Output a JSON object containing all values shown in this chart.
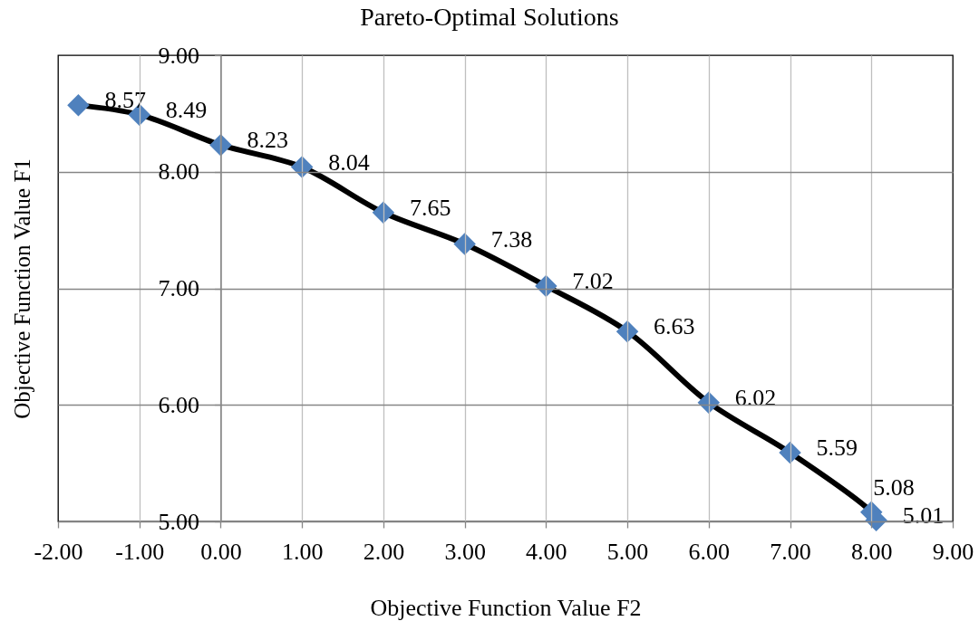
{
  "chart_data": {
    "type": "line",
    "title": "Pareto-Optimal Solutions",
    "xlabel": "Objective Function Value F2",
    "ylabel": "Objective Function Value F1",
    "x": [
      -1.75,
      -1,
      0,
      1,
      2,
      3,
      4,
      5,
      6,
      7,
      8,
      8.06
    ],
    "series": [
      {
        "color": "#000000",
        "colors": [
          "#4f81bd",
          "#4f81bd",
          "#4f81bd",
          "#4f81bd",
          "#4f81bd",
          "#4f81bd",
          "#4f81bd",
          "#4f81bd",
          "#4f81bd",
          "#4f81bd",
          "#4f81bd",
          "#4f81bd"
        ],
        "values": [
          8.57,
          8.49,
          8.23,
          8.04,
          7.65,
          7.38,
          7.02,
          6.63,
          6.02,
          5.59,
          5.08,
          5.01
        ]
      }
    ],
    "xlim": [
      -2,
      9
    ],
    "ylim": [
      5,
      9
    ],
    "xticks": [
      {
        "value": -2,
        "label": "-2.00"
      },
      {
        "value": -1,
        "label": "-1.00"
      },
      {
        "value": 0,
        "label": "0.00"
      },
      {
        "value": 1,
        "label": "1.00"
      },
      {
        "value": 2,
        "label": "2.00"
      },
      {
        "value": 3,
        "label": "3.00"
      },
      {
        "value": 4,
        "label": "4.00"
      },
      {
        "value": 5,
        "label": "5.00"
      },
      {
        "value": 6,
        "label": "6.00"
      },
      {
        "value": 7,
        "label": "7.00"
      },
      {
        "value": 8,
        "label": "8.00"
      },
      {
        "value": 9,
        "label": "9.00"
      }
    ],
    "yticks": [
      {
        "value": 5,
        "label": "5.00"
      },
      {
        "value": 6,
        "label": "6.00"
      },
      {
        "value": 7,
        "label": "7.00"
      },
      {
        "value": 8,
        "label": "8.00"
      },
      {
        "value": 9,
        "label": "9.00"
      }
    ],
    "grid": true,
    "marker": "diamond",
    "line_style": "solid",
    "data_labels": true
  }
}
